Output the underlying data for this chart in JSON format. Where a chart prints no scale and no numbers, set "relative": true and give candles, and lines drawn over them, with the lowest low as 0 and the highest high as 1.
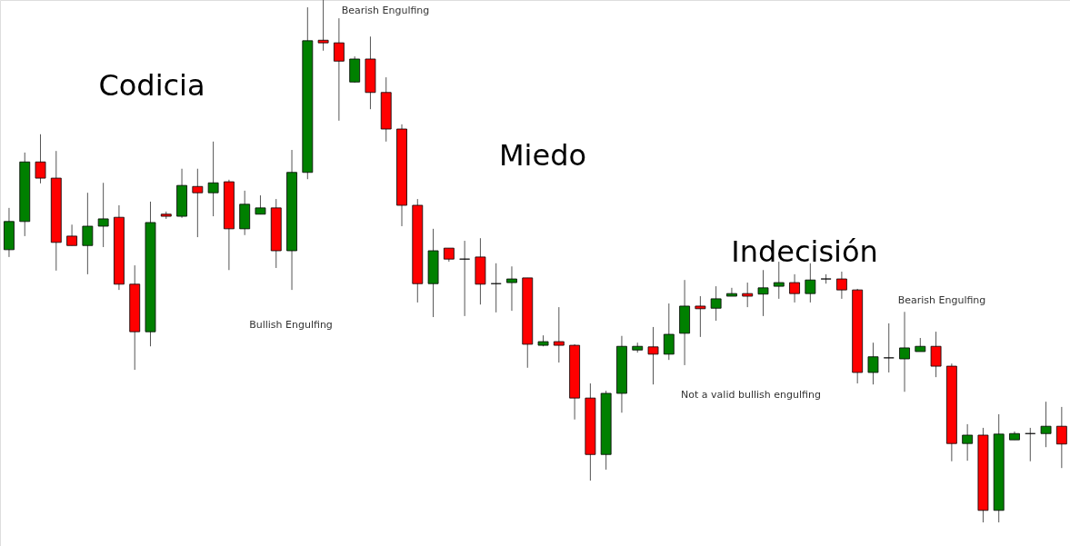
{
  "chart_data": {
    "type": "candlestick",
    "relative": true,
    "categories": [
      null,
      null,
      null,
      null,
      null,
      null,
      null,
      null,
      null,
      null,
      null,
      null,
      null,
      null,
      null,
      null,
      null,
      null,
      null,
      null,
      null,
      null,
      null,
      null,
      null,
      null,
      null,
      null,
      null,
      null,
      null,
      null,
      null,
      null,
      null,
      null,
      null,
      null,
      null,
      null,
      null,
      null,
      null,
      null,
      null,
      null,
      null,
      null,
      null,
      null,
      null,
      null,
      null,
      null,
      null,
      null,
      null,
      null,
      null,
      null,
      null,
      null,
      null,
      null,
      null,
      null,
      null,
      null
    ],
    "ohlc": [
      [
        0.522,
        0.602,
        0.508,
        0.576
      ],
      [
        0.576,
        0.708,
        0.548,
        0.69
      ],
      [
        0.69,
        0.743,
        0.649,
        0.659
      ],
      [
        0.659,
        0.711,
        0.482,
        0.536
      ],
      [
        0.548,
        0.57,
        0.53,
        0.53
      ],
      [
        0.53,
        0.631,
        0.475,
        0.567
      ],
      [
        0.567,
        0.65,
        0.527,
        0.581
      ],
      [
        0.584,
        0.607,
        0.445,
        0.456
      ],
      [
        0.456,
        0.492,
        0.292,
        0.365
      ],
      [
        0.365,
        0.614,
        0.337,
        0.574
      ],
      [
        0.59,
        0.595,
        0.581,
        0.586
      ],
      [
        0.586,
        0.677,
        0.583,
        0.645
      ],
      [
        0.643,
        0.677,
        0.546,
        0.631
      ],
      [
        0.631,
        0.729,
        0.586,
        0.65
      ],
      [
        0.652,
        0.656,
        0.483,
        0.562
      ],
      [
        0.562,
        0.635,
        0.55,
        0.609
      ],
      [
        0.59,
        0.626,
        0.59,
        0.602
      ],
      [
        0.602,
        0.619,
        0.487,
        0.52
      ],
      [
        0.52,
        0.713,
        0.445,
        0.67
      ],
      [
        0.67,
        0.986,
        0.657,
        0.922
      ],
      [
        0.923,
        1.0,
        0.903,
        0.918
      ],
      [
        0.918,
        0.965,
        0.769,
        0.883
      ],
      [
        0.843,
        0.892,
        0.842,
        0.887
      ],
      [
        0.887,
        0.93,
        0.791,
        0.823
      ],
      [
        0.823,
        0.852,
        0.729,
        0.753
      ],
      [
        0.753,
        0.762,
        0.567,
        0.607
      ],
      [
        0.607,
        0.619,
        0.421,
        0.457
      ],
      [
        0.457,
        0.562,
        0.393,
        0.52
      ],
      [
        0.525,
        0.525,
        0.499,
        0.504
      ],
      [
        0.504,
        0.539,
        0.395,
        0.504
      ],
      [
        0.508,
        0.544,
        0.417,
        0.456
      ],
      [
        0.457,
        0.496,
        0.402,
        0.457
      ],
      [
        0.459,
        0.49,
        0.405,
        0.466
      ],
      [
        0.468,
        0.468,
        0.296,
        0.341
      ],
      [
        0.339,
        0.358,
        0.337,
        0.346
      ],
      [
        0.346,
        0.412,
        0.306,
        0.339
      ],
      [
        0.339,
        0.341,
        0.197,
        0.238
      ],
      [
        0.238,
        0.266,
        0.08,
        0.13
      ],
      [
        0.13,
        0.252,
        0.101,
        0.247
      ],
      [
        0.247,
        0.357,
        0.21,
        0.337
      ],
      [
        0.33,
        0.344,
        0.325,
        0.337
      ],
      [
        0.336,
        0.374,
        0.264,
        0.322
      ],
      [
        0.322,
        0.419,
        0.311,
        0.36
      ],
      [
        0.362,
        0.464,
        0.301,
        0.414
      ],
      [
        0.414,
        0.433,
        0.355,
        0.409
      ],
      [
        0.41,
        0.452,
        0.386,
        0.428
      ],
      [
        0.433,
        0.449,
        0.433,
        0.438
      ],
      [
        0.438,
        0.459,
        0.412,
        0.433
      ],
      [
        0.437,
        0.483,
        0.395,
        0.449
      ],
      [
        0.452,
        0.499,
        0.428,
        0.459
      ],
      [
        0.459,
        0.475,
        0.421,
        0.438
      ],
      [
        0.438,
        0.496,
        0.421,
        0.464
      ],
      [
        0.466,
        0.475,
        0.457,
        0.466
      ],
      [
        0.466,
        0.48,
        0.428,
        0.445
      ],
      [
        0.445,
        0.447,
        0.266,
        0.287
      ],
      [
        0.287,
        0.344,
        0.264,
        0.317
      ],
      [
        0.315,
        0.381,
        0.287,
        0.315
      ],
      [
        0.313,
        0.403,
        0.25,
        0.334
      ],
      [
        0.327,
        0.353,
        0.327,
        0.337
      ],
      [
        0.337,
        0.365,
        0.278,
        0.299
      ],
      [
        0.299,
        0.304,
        0.117,
        0.151
      ],
      [
        0.151,
        0.188,
        0.118,
        0.167
      ],
      [
        0.167,
        0.181,
        0.0,
        0.023
      ],
      [
        0.023,
        0.207,
        0.0,
        0.169
      ],
      [
        0.158,
        0.174,
        0.158,
        0.17
      ],
      [
        0.17,
        0.181,
        0.117,
        0.17
      ],
      [
        0.17,
        0.231,
        0.144,
        0.184
      ],
      [
        0.184,
        0.221,
        0.104,
        0.15
      ]
    ],
    "colors": [
      "#008000",
      "#008000",
      "#ff0000",
      "#ff0000",
      "#ff0000",
      "#008000",
      "#008000",
      "#ff0000",
      "#ff0000",
      "#008000",
      "#ff0000",
      "#008000",
      "#ff0000",
      "#008000",
      "#ff0000",
      "#008000",
      "#008000",
      "#ff0000",
      "#008000",
      "#008000",
      "#ff0000",
      "#ff0000",
      "#008000",
      "#ff0000",
      "#ff0000",
      "#ff0000",
      "#ff0000",
      "#008000",
      "#ff0000",
      "#000000",
      "#ff0000",
      "#000000",
      "#008000",
      "#ff0000",
      "#008000",
      "#ff0000",
      "#ff0000",
      "#ff0000",
      "#008000",
      "#008000",
      "#008000",
      "#ff0000",
      "#008000",
      "#008000",
      "#ff0000",
      "#008000",
      "#008000",
      "#ff0000",
      "#008000",
      "#008000",
      "#ff0000",
      "#008000",
      "#000000",
      "#ff0000",
      "#ff0000",
      "#008000",
      "#000000",
      "#008000",
      "#008000",
      "#ff0000",
      "#ff0000",
      "#008000",
      "#ff0000",
      "#008000",
      "#008000",
      "#000000",
      "#008000",
      "#ff0000"
    ],
    "annotations": [
      "Codicia",
      "Bearish Engulfing",
      "Bullish Engulfing",
      "Miedo",
      "Indecisión",
      "Not a valid bullish engulfing",
      "Bearish Engulfing"
    ]
  }
}
